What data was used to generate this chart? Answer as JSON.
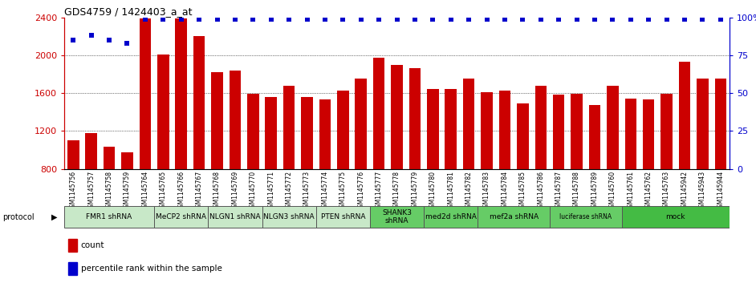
{
  "title": "GDS4759 / 1424403_a_at",
  "samples": [
    "GSM1145756",
    "GSM1145757",
    "GSM1145758",
    "GSM1145759",
    "GSM1145764",
    "GSM1145765",
    "GSM1145766",
    "GSM1145767",
    "GSM1145768",
    "GSM1145769",
    "GSM1145770",
    "GSM1145771",
    "GSM1145772",
    "GSM1145773",
    "GSM1145774",
    "GSM1145775",
    "GSM1145776",
    "GSM1145777",
    "GSM1145778",
    "GSM1145779",
    "GSM1145780",
    "GSM1145781",
    "GSM1145782",
    "GSM1145783",
    "GSM1145784",
    "GSM1145785",
    "GSM1145786",
    "GSM1145787",
    "GSM1145788",
    "GSM1145789",
    "GSM1145760",
    "GSM1145761",
    "GSM1145762",
    "GSM1145763",
    "GSM1145942",
    "GSM1145943",
    "GSM1145944"
  ],
  "bar_values": [
    1100,
    1175,
    1030,
    975,
    2390,
    2010,
    2390,
    2200,
    1820,
    1840,
    1590,
    1560,
    1680,
    1555,
    1530,
    1625,
    1755,
    1975,
    1900,
    1865,
    1645,
    1640,
    1755,
    1610,
    1625,
    1490,
    1680,
    1585,
    1590,
    1470,
    1680,
    1540,
    1530,
    1595,
    1930,
    1755,
    1755
  ],
  "percentile_values": [
    85,
    88,
    85,
    83,
    99,
    99,
    99,
    99,
    99,
    99,
    99,
    99,
    99,
    99,
    99,
    99,
    99,
    99,
    99,
    99,
    99,
    99,
    99,
    99,
    99,
    99,
    99,
    99,
    99,
    99,
    99,
    99,
    99,
    99,
    99,
    99,
    99
  ],
  "ymin": 800,
  "ymax": 2400,
  "y2min": 0,
  "y2max": 100,
  "bar_color": "#cc0000",
  "dot_color": "#0000cc",
  "tick_bg_color": "#d4d4d4",
  "protocols": [
    {
      "label": "FMR1 shRNA",
      "start": 0,
      "end": 4,
      "color": "#c8e8c8"
    },
    {
      "label": "MeCP2 shRNA",
      "start": 5,
      "end": 7,
      "color": "#c8e8c8"
    },
    {
      "label": "NLGN1 shRNA",
      "start": 8,
      "end": 10,
      "color": "#c8e8c8"
    },
    {
      "label": "NLGN3 shRNA",
      "start": 11,
      "end": 13,
      "color": "#c8e8c8"
    },
    {
      "label": "PTEN shRNA",
      "start": 14,
      "end": 16,
      "color": "#c8e8c8"
    },
    {
      "label": "SHANK3\nshRNA",
      "start": 17,
      "end": 19,
      "color": "#66cc66"
    },
    {
      "label": "med2d shRNA",
      "start": 20,
      "end": 22,
      "color": "#66cc66"
    },
    {
      "label": "mef2a shRNA",
      "start": 23,
      "end": 26,
      "color": "#66cc66"
    },
    {
      "label": "luciferase shRNA",
      "start": 27,
      "end": 30,
      "color": "#66cc66"
    },
    {
      "label": "mock",
      "start": 31,
      "end": 36,
      "color": "#44bb44"
    }
  ]
}
